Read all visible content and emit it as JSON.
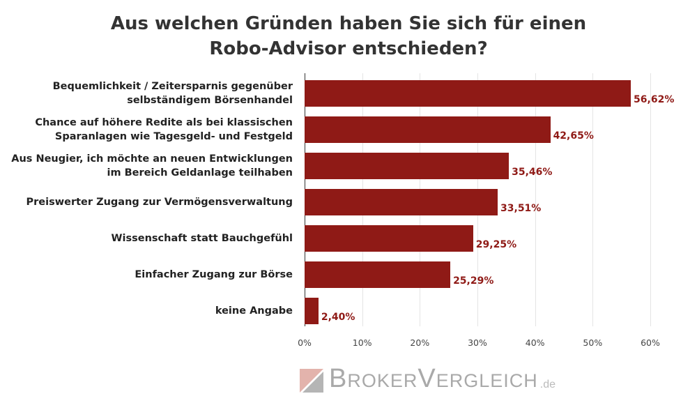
{
  "chart_data": {
    "type": "bar",
    "orientation": "horizontal",
    "title": "Aus welchen Gründen haben Sie sich für einen Robo-Advisor entschieden?",
    "title_lines": [
      "Aus welchen Gründen haben Sie sich für einen",
      "Robo-Advisor entschieden?"
    ],
    "categories": [
      [
        "Bequemlichkeit / Zeitersparnis gegenüber",
        "selbständigem Börsenhandel"
      ],
      [
        "Chance auf höhere Redite als bei klassischen",
        "Sparanlagen wie  Tagesgeld- und Festgeld"
      ],
      [
        "Aus Neugier, ich möchte an neuen Entwicklungen",
        "im Bereich Geldanlage teilhaben"
      ],
      [
        "Preiswerter Zugang zur Vermögensverwaltung"
      ],
      [
        "Wissenschaft statt Bauchgefühl"
      ],
      [
        "Einfacher Zugang zur Börse"
      ],
      [
        "keine Angabe"
      ]
    ],
    "values": [
      56.62,
      42.65,
      35.46,
      33.51,
      29.25,
      25.29,
      2.4
    ],
    "value_labels": [
      "56,62%",
      "42,65%",
      "35,46%",
      "33,51%",
      "29,25%",
      "25,29%",
      "2,40%"
    ],
    "xlim": [
      0,
      60
    ],
    "xticks": [
      0,
      10,
      20,
      30,
      40,
      50,
      60
    ],
    "xtick_labels": [
      "0%",
      "10%",
      "20%",
      "30%",
      "40%",
      "50%",
      "60%"
    ],
    "grid": true,
    "bar_color": "#8f1a16"
  },
  "logo": {
    "main": "BrokerVergleich",
    "suffix": ".de"
  }
}
